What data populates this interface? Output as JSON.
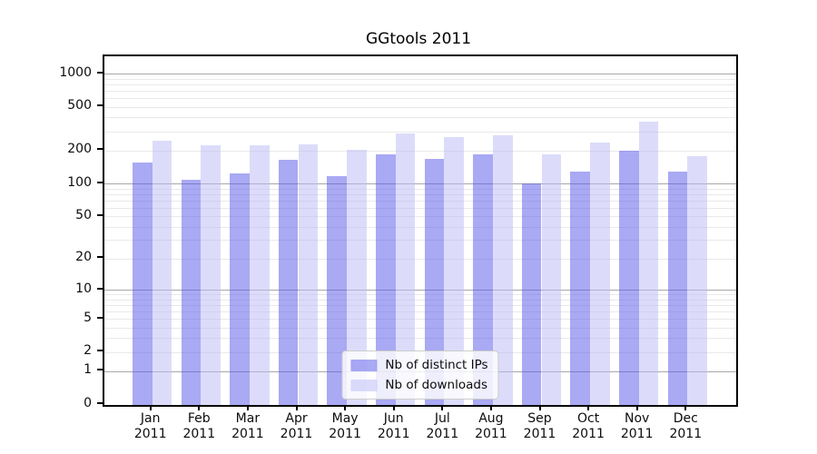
{
  "chart_data": {
    "type": "bar",
    "title": "GGtools 2011",
    "categories": [
      "Jan\n2011",
      "Feb\n2011",
      "Mar\n2011",
      "Apr\n2011",
      "May\n2011",
      "Jun\n2011",
      "Jul\n2011",
      "Aug\n2011",
      "Sep\n2011",
      "Oct\n2011",
      "Nov\n2011",
      "Dec\n2011"
    ],
    "series": [
      {
        "name": "Nb of distinct IPs",
        "color": "#5454e9",
        "alpha": 0.5,
        "values": [
          158,
          110,
          125,
          165,
          119,
          187,
          168,
          185,
          101,
          130,
          202,
          131
        ]
      },
      {
        "name": "Nb of downloads",
        "color": "#b9b9f5",
        "alpha": 0.5,
        "values": [
          247,
          227,
          224,
          229,
          205,
          290,
          270,
          278,
          186,
          238,
          370,
          181
        ]
      }
    ],
    "yaxis": {
      "scale": "log1p",
      "max": 1452,
      "ticks": [
        0,
        1,
        2,
        5,
        10,
        20,
        50,
        100,
        200,
        500,
        1000
      ],
      "major_gridlines": [
        1,
        10,
        100,
        1000
      ],
      "minor_gridlines": [
        2,
        3,
        4,
        5,
        6,
        7,
        8,
        9,
        20,
        30,
        40,
        50,
        60,
        70,
        80,
        90,
        200,
        300,
        400,
        500,
        600,
        700,
        800,
        900
      ]
    },
    "legend": {
      "position": "lower center"
    },
    "colors": {
      "major_grid": "#a8a8a8",
      "minor_grid": "#e9e9e9",
      "spine": "#000000",
      "background": "#ffffff"
    }
  }
}
